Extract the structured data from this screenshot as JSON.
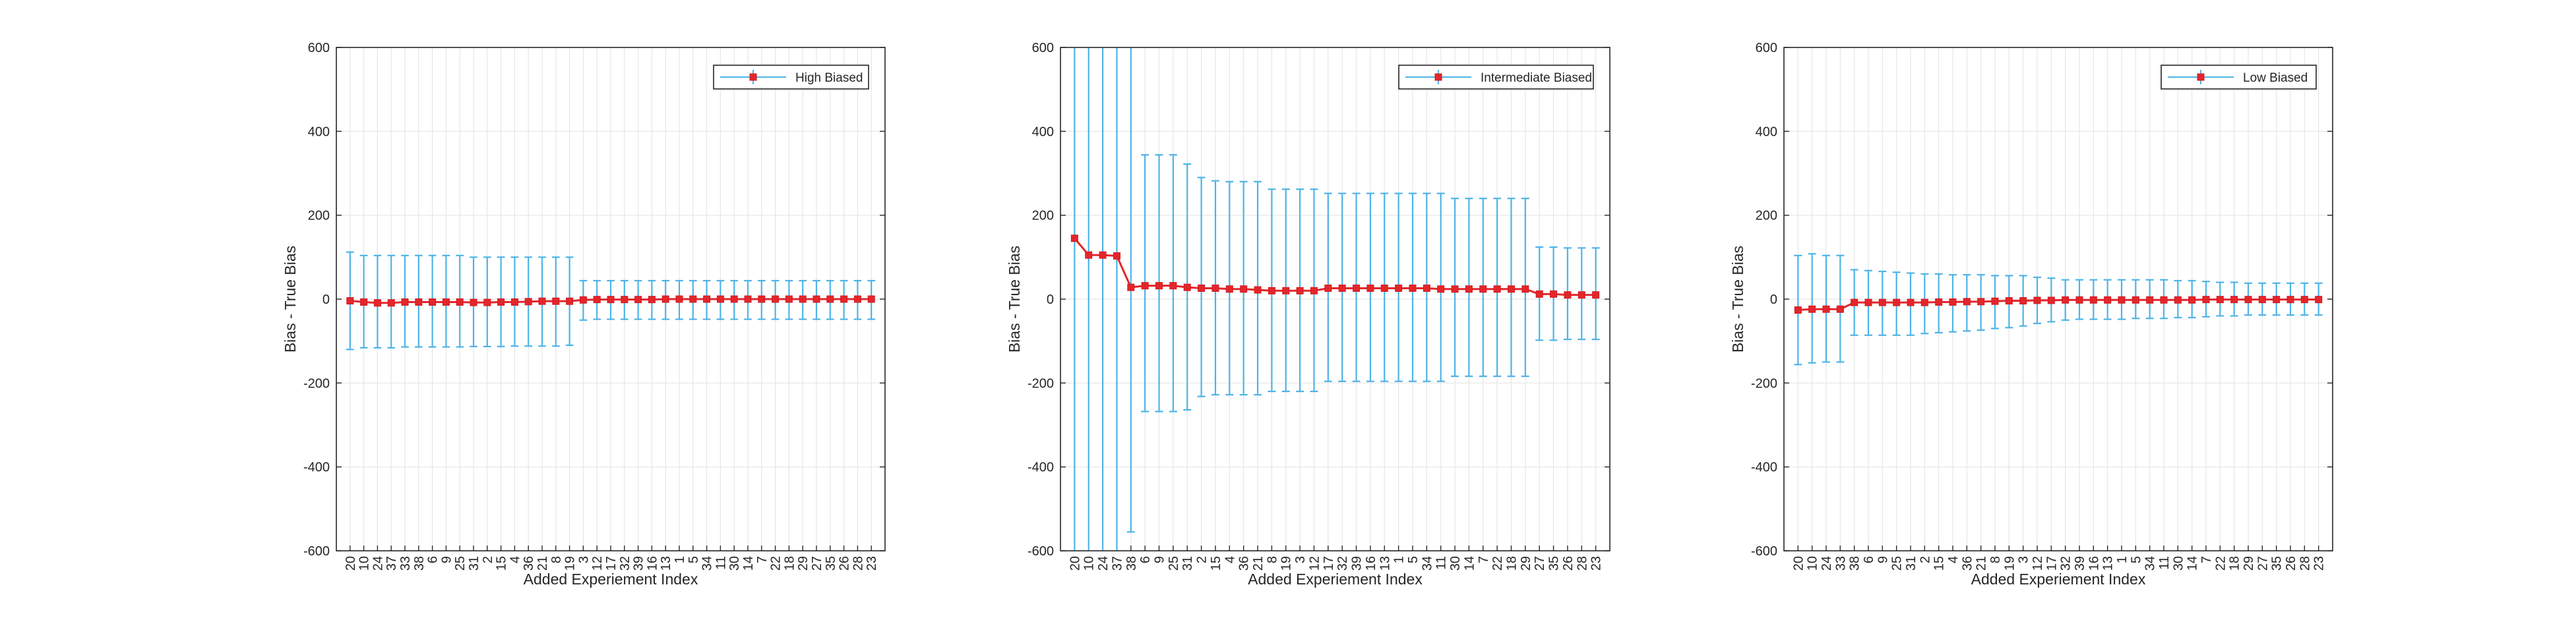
{
  "colors": {
    "errorbar": "#4db3e6",
    "marker": "#e3262b",
    "grid": "#e6e6e6",
    "axis": "#262626"
  },
  "chart_data": [
    {
      "type": "line",
      "legend": "High Biased",
      "legend_position": "top-right",
      "grid": true,
      "xlabel": "Added Experiement Index",
      "ylabel": "Bias - True Bias",
      "ylim": [
        -600,
        600
      ],
      "yticks": [
        -600,
        -400,
        -200,
        0,
        200,
        400,
        600
      ],
      "categories": [
        "20",
        "10",
        "24",
        "37",
        "33",
        "38",
        "6",
        "9",
        "25",
        "31",
        "2",
        "15",
        "4",
        "36",
        "21",
        "8",
        "19",
        "3",
        "12",
        "17",
        "32",
        "39",
        "16",
        "13",
        "1",
        "5",
        "34",
        "11",
        "30",
        "14",
        "7",
        "22",
        "18",
        "29",
        "27",
        "35",
        "26",
        "28",
        "23"
      ],
      "series": [
        {
          "name": "High Biased",
          "values": [
            -4,
            -7,
            -9,
            -9,
            -7,
            -7,
            -7,
            -7,
            -7,
            -8,
            -8,
            -7,
            -7,
            -6,
            -5,
            -5,
            -5,
            -2,
            -1,
            -1,
            -1,
            -1,
            -1,
            0,
            0,
            0,
            0,
            0,
            0,
            0,
            0,
            0,
            0,
            0,
            0,
            0,
            0,
            0,
            0
          ],
          "err_lower": [
            -120,
            -116,
            -116,
            -116,
            -114,
            -114,
            -114,
            -114,
            -114,
            -113,
            -113,
            -113,
            -112,
            -112,
            -112,
            -112,
            -110,
            -50,
            -48,
            -48,
            -48,
            -48,
            -48,
            -48,
            -48,
            -48,
            -48,
            -48,
            -48,
            -48,
            -48,
            -48,
            -48,
            -48,
            -48,
            -48,
            -48,
            -48,
            -48
          ],
          "err_upper": [
            112,
            104,
            104,
            104,
            104,
            104,
            104,
            104,
            104,
            100,
            100,
            100,
            100,
            100,
            100,
            100,
            100,
            44,
            44,
            44,
            44,
            44,
            44,
            44,
            44,
            44,
            44,
            44,
            44,
            44,
            44,
            44,
            44,
            44,
            44,
            44,
            44,
            44,
            44
          ]
        }
      ]
    },
    {
      "type": "line",
      "legend": "Intermediate Biased",
      "legend_position": "top-right",
      "grid": true,
      "xlabel": "Added Experiement Index",
      "ylabel": "Bias - True Bias",
      "ylim": [
        -600,
        600
      ],
      "yticks": [
        -600,
        -400,
        -200,
        0,
        200,
        400,
        600
      ],
      "categories": [
        "20",
        "10",
        "24",
        "37",
        "38",
        "6",
        "9",
        "25",
        "31",
        "2",
        "15",
        "4",
        "36",
        "21",
        "8",
        "19",
        "3",
        "12",
        "17",
        "32",
        "39",
        "16",
        "13",
        "1",
        "5",
        "34",
        "11",
        "30",
        "14",
        "7",
        "22",
        "18",
        "29",
        "27",
        "35",
        "26",
        "28",
        "23"
      ],
      "series": [
        {
          "name": "Intermediate Biased",
          "values": [
            145,
            105,
            105,
            103,
            28,
            32,
            32,
            32,
            28,
            26,
            26,
            24,
            24,
            22,
            20,
            20,
            20,
            20,
            26,
            26,
            26,
            26,
            26,
            26,
            26,
            26,
            24,
            24,
            24,
            24,
            24,
            24,
            24,
            12,
            12,
            10,
            10,
            10
          ],
          "err_lower": [
            -620,
            -620,
            -620,
            -620,
            -555,
            -268,
            -268,
            -268,
            -264,
            -232,
            -228,
            -228,
            -228,
            -228,
            -220,
            -220,
            -220,
            -220,
            -196,
            -196,
            -196,
            -196,
            -196,
            -196,
            -196,
            -196,
            -196,
            -184,
            -184,
            -184,
            -184,
            -184,
            -184,
            -98,
            -98,
            -96,
            -96,
            -96
          ],
          "err_upper": [
            620,
            620,
            620,
            620,
            620,
            344,
            344,
            344,
            322,
            290,
            282,
            280,
            280,
            280,
            262,
            262,
            262,
            262,
            252,
            252,
            252,
            252,
            252,
            252,
            252,
            252,
            252,
            240,
            240,
            240,
            240,
            240,
            240,
            124,
            124,
            122,
            122,
            122
          ]
        }
      ]
    },
    {
      "type": "line",
      "legend": "Low Biased",
      "legend_position": "top-right",
      "grid": true,
      "xlabel": "Added Experiement Index",
      "ylabel": "Bias - True Bias",
      "ylim": [
        -600,
        600
      ],
      "yticks": [
        -600,
        -400,
        -200,
        0,
        200,
        400,
        600
      ],
      "categories": [
        "20",
        "10",
        "24",
        "33",
        "38",
        "6",
        "9",
        "25",
        "31",
        "2",
        "15",
        "4",
        "36",
        "21",
        "8",
        "19",
        "3",
        "12",
        "17",
        "32",
        "39",
        "16",
        "13",
        "1",
        "5",
        "34",
        "11",
        "30",
        "14",
        "7",
        "22",
        "18",
        "29",
        "27",
        "35",
        "26",
        "28",
        "23"
      ],
      "series": [
        {
          "name": "Low Biased",
          "values": [
            -26,
            -24,
            -24,
            -24,
            -8,
            -8,
            -8,
            -8,
            -8,
            -8,
            -7,
            -7,
            -6,
            -6,
            -5,
            -4,
            -4,
            -3,
            -3,
            -2,
            -2,
            -2,
            -2,
            -2,
            -2,
            -2,
            -2,
            -2,
            -2,
            -1,
            -1,
            -1,
            -1,
            -1,
            -1,
            -1,
            -1,
            -1
          ],
          "err_lower": [
            -156,
            -152,
            -150,
            -150,
            -86,
            -86,
            -86,
            -86,
            -86,
            -82,
            -80,
            -78,
            -76,
            -74,
            -70,
            -68,
            -64,
            -58,
            -54,
            -50,
            -48,
            -48,
            -48,
            -48,
            -46,
            -46,
            -46,
            -44,
            -44,
            -42,
            -40,
            -40,
            -38,
            -38,
            -38,
            -38,
            -38,
            -38
          ],
          "err_upper": [
            104,
            108,
            104,
            104,
            70,
            68,
            66,
            64,
            62,
            60,
            60,
            58,
            58,
            58,
            56,
            56,
            56,
            52,
            50,
            46,
            46,
            46,
            46,
            46,
            46,
            46,
            46,
            44,
            44,
            42,
            40,
            40,
            38,
            38,
            38,
            38,
            38,
            38
          ]
        }
      ]
    }
  ]
}
